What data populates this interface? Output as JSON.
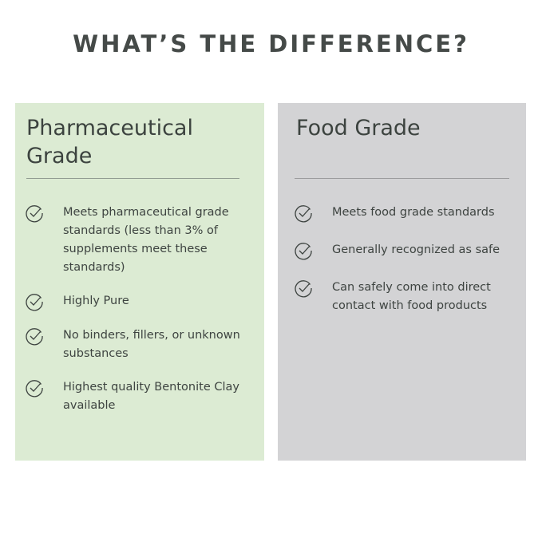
{
  "title": "WHAT’S THE DIFFERENCE?",
  "colors": {
    "pharma_bg": "#dcebd3",
    "food_bg": "#d3d3d5",
    "text": "#3b423e"
  },
  "pharmaceutical": {
    "heading_line1": "Pharmaceutical",
    "heading_line2": "Grade",
    "icon": "check-circle-icon",
    "items": [
      "Meets pharmaceutical grade standards (less than 3% of supplements meet these standards)",
      "Highly Pure",
      "No binders, fillers, or unknown substances",
      "Highest quality Bentonite Clay available"
    ]
  },
  "food": {
    "heading": "Food Grade",
    "icon": "check-circle-icon",
    "items": [
      "Meets food grade standards",
      "Generally recognized as safe",
      "Can safely come into direct contact with food products"
    ]
  }
}
